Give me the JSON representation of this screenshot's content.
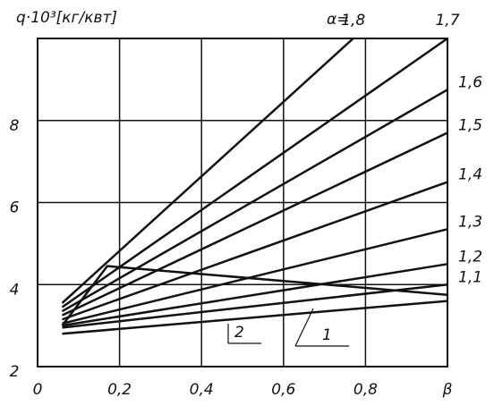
{
  "chart_data": {
    "type": "line",
    "title": "q·10³[кг/квт]",
    "annotations": [
      "α="
    ],
    "xlim": [
      0,
      1
    ],
    "ylim": [
      2,
      10
    ],
    "xticks": [
      0,
      {
        "value": 0.2,
        "label": "0,2"
      },
      {
        "value": 0.4,
        "label": "0,4"
      },
      {
        "value": 0.6,
        "label": "0,6"
      },
      {
        "value": 0.8,
        "label": "0,8"
      },
      {
        "value": 1,
        "label": "β"
      }
    ],
    "yticks": [
      2,
      4,
      6,
      8
    ],
    "grid": true,
    "series": [
      {
        "name": "1,8",
        "color": "#111111",
        "x": [
          0.06,
          0.77
        ],
        "values": [
          3.55,
          10
        ]
      },
      {
        "name": "1,7",
        "color": "#111111",
        "x": [
          0.06,
          1
        ],
        "values": [
          3.45,
          10
        ]
      },
      {
        "name": "1,6",
        "color": "#111111",
        "x": [
          0.06,
          1
        ],
        "values": [
          3.35,
          8.75
        ]
      },
      {
        "name": "1,5",
        "color": "#111111",
        "x": [
          0.06,
          1
        ],
        "values": [
          3.25,
          7.7
        ]
      },
      {
        "name": "1,4",
        "color": "#111111",
        "x": [
          0.06,
          1
        ],
        "values": [
          3.15,
          6.5
        ]
      },
      {
        "name": "1,3",
        "color": "#111111",
        "x": [
          0.06,
          1
        ],
        "values": [
          3.05,
          5.35
        ]
      },
      {
        "name": "1,2",
        "color": "#111111",
        "x": [
          0.06,
          1
        ],
        "values": [
          3.0,
          4.5
        ]
      },
      {
        "name": "1,1",
        "color": "#111111",
        "x": [
          0.06,
          1
        ],
        "values": [
          2.95,
          4.0
        ]
      },
      {
        "name": "1",
        "color": "#111111",
        "x": [
          0.06,
          1
        ],
        "values": [
          2.8,
          3.6
        ]
      },
      {
        "name": "2",
        "color": "#111111",
        "x": [
          0.06,
          0.17,
          1
        ],
        "values": [
          3.0,
          4.45,
          3.75
        ]
      }
    ]
  }
}
